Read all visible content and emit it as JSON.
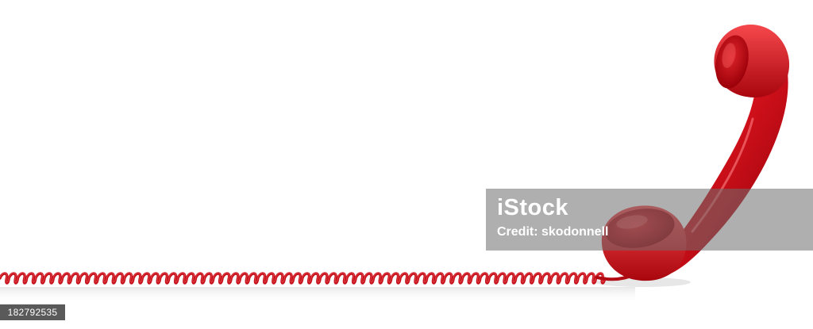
{
  "photo": {
    "subject": "red-telephone-handset-with-coiled-cord",
    "handset_color": "#d0101a",
    "background_color": "#ffffff"
  },
  "watermark": {
    "brand": "iStock",
    "credit": "Credit: skodonnell"
  },
  "image_id": "182792535"
}
